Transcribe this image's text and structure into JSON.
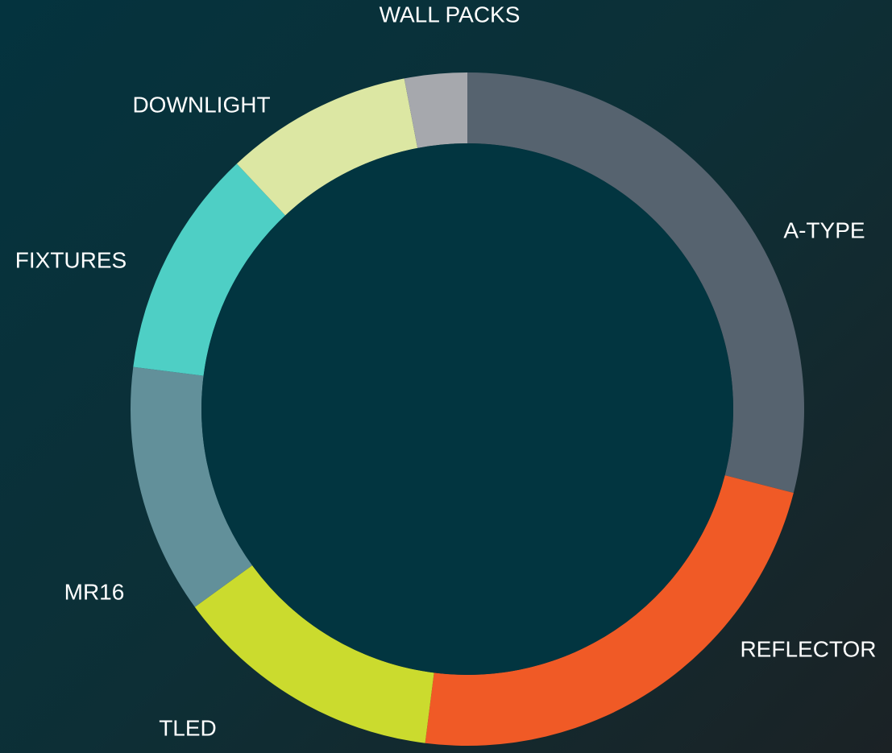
{
  "chart_data": {
    "type": "donut",
    "categories": [
      "A-TYPE",
      "REFLECTOR",
      "TLED",
      "MR16",
      "FIXTURES",
      "DOWNLIGHT",
      "WALL PACKS"
    ],
    "values": [
      29,
      23,
      13,
      12,
      11,
      9,
      3
    ],
    "colors": [
      "#56636f",
      "#f05a26",
      "#cbdb2e",
      "#62909a",
      "#4ecfc5",
      "#dce7a3",
      "#a6a8ad"
    ]
  }
}
